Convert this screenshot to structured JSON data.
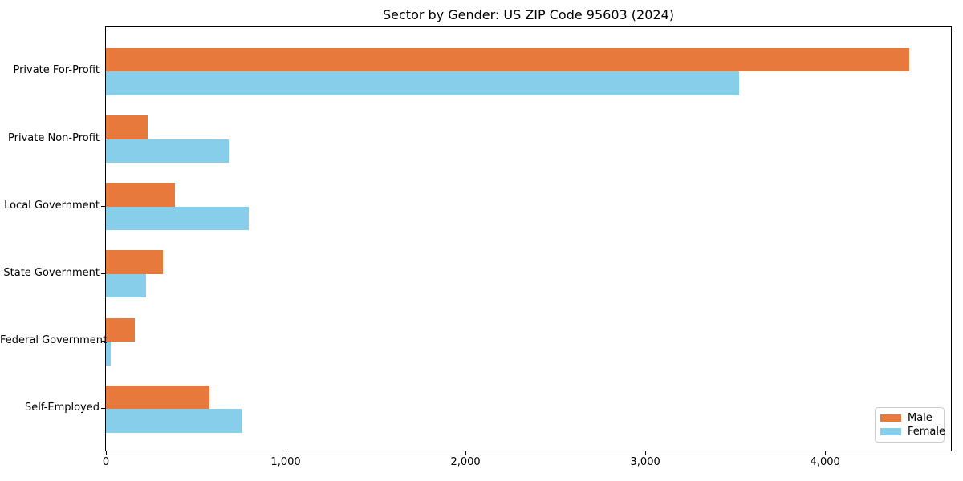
{
  "title": "Sector by Gender: US ZIP Code 95603 (2024)",
  "chart_data": {
    "type": "bar",
    "orientation": "horizontal",
    "title": "Sector by Gender: US ZIP Code 95603 (2024)",
    "categories": [
      "Private For-Profit",
      "Private Non-Profit",
      "Local Government",
      "State Government",
      "Federal Government",
      "Self-Employed"
    ],
    "series": [
      {
        "name": "Male",
        "color": "#e8793d",
        "values": [
          4470,
          230,
          385,
          315,
          160,
          575
        ]
      },
      {
        "name": "Female",
        "color": "#87ceeb",
        "values": [
          3520,
          685,
          795,
          225,
          25,
          755
        ]
      }
    ],
    "xlabel": "",
    "ylabel": "",
    "xlim": [
      0,
      4700
    ],
    "xticks": [
      0,
      1000,
      2000,
      3000,
      4000
    ],
    "xticklabels": [
      "0",
      "1,000",
      "2,000",
      "3,000",
      "4,000"
    ],
    "grid": false,
    "legend": {
      "position": "lower right",
      "items": [
        "Male",
        "Female"
      ]
    },
    "bar_group_gap": 0,
    "axis_color": "#000000",
    "background_color": "#ffffff"
  }
}
